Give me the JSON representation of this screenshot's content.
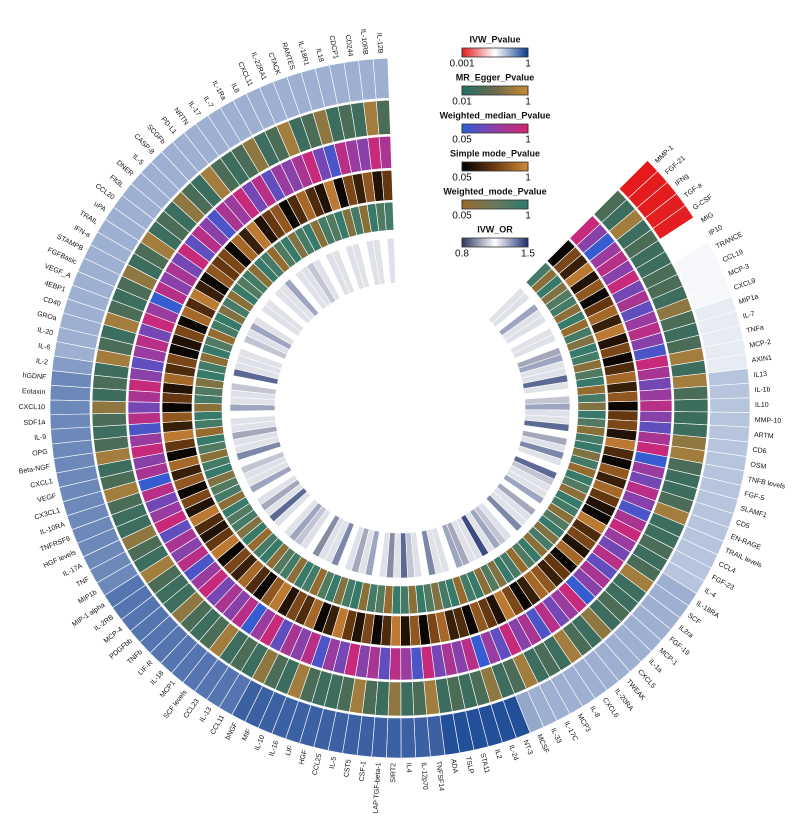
{
  "chart_data": {
    "type": "circular-heatmap",
    "categories": [
      "MMP-1",
      "FGF-21",
      "IFNg",
      "TGF-a",
      "G-CSF",
      "MIG",
      "IP10",
      "TRANCE",
      "CCL19",
      "MCP-3",
      "CXCL9",
      "MIP1a",
      "IL-7",
      "TNFa",
      "MCP-2",
      "AXIN1",
      "IL13",
      "IL-1b",
      "IL10",
      "MMP-10",
      "ARTM",
      "CD6",
      "OSM",
      "TNFB levels",
      "FGF-5",
      "SLAMF1",
      "CD5",
      "EN-RAGE",
      "TRAIL levels",
      "CCL4",
      "FGF-23",
      "IL-4",
      "IL-18RA",
      "SCF",
      "IL2ra",
      "FGF-19",
      "MCP-1",
      "IL-1a",
      "CXCL5",
      "TWEAK",
      "IL-20RA",
      "CXCL6",
      "IL-8",
      "MCP3",
      "IL-17C",
      "IL-33",
      "MCSF",
      "NT-3",
      "IL-24",
      "IL2",
      "STA11",
      "TSLP",
      "ADA",
      "TNFSF14",
      "IL-12p70",
      "IL4",
      "SIRT2",
      "LAP TGF-beta-1",
      "CSF-1",
      "CST5",
      "IL-5",
      "CCL25",
      "HGF",
      "LIF",
      "IL-16",
      "IL-10",
      "MIF",
      "bNGF",
      "CCL11",
      "IL-13",
      "CCL23",
      "SCF levels",
      "MCP1",
      "IL-18",
      "LIF-R",
      "TNFb",
      "PDGFbb",
      "MCP-4",
      "IL-2RB",
      "MIP-1 alpha",
      "MIP1b",
      "TNF",
      "IL-17A",
      "HGF levels",
      "TNFRSF9",
      "IL-10RA",
      "CX3CL1",
      "VEGF",
      "CXCL1",
      "Beta-NGF",
      "OPG",
      "IL-9",
      "SDF1a",
      "CXCL10",
      "Eotaxin",
      "hGDNF",
      "IL-2",
      "IL-6",
      "IL-20",
      "GROa",
      "CD40",
      "4EBP1",
      "VEGF_A",
      "FGFBasic",
      "STAMPB",
      "IFN-a",
      "TRAIL",
      "uPA",
      "CCL20",
      "Flt3L",
      "DNER",
      "IL-5",
      "CASP-8",
      "SCGFb",
      "PD-L1",
      "NRTN",
      "IL-17",
      "IL-7",
      "IL-1Ra",
      "IL8",
      "CXCL11",
      "IL-22RA1",
      "CTACK",
      "RANTES",
      "IL-18R1",
      "IL18",
      "CDCP1",
      "CD244",
      "IL-10RB",
      "IL-12B"
    ],
    "series": [
      {
        "name": "IVW_Pvalue",
        "lim": [
          0.001,
          1
        ],
        "ticks": [
          0.001,
          1
        ],
        "colors": [
          "#e41a1c",
          "#ffffff",
          "#0b3a8c"
        ],
        "values": [
          0.002,
          0.004,
          0.006,
          0.008,
          0.01,
          0.5,
          0.5,
          0.52,
          0.52,
          0.52,
          0.52,
          0.55,
          0.55,
          0.55,
          0.55,
          0.55,
          0.65,
          0.65,
          0.65,
          0.65,
          0.65,
          0.65,
          0.65,
          0.65,
          0.65,
          0.65,
          0.65,
          0.65,
          0.65,
          0.65,
          0.65,
          0.65,
          0.7,
          0.7,
          0.7,
          0.7,
          0.7,
          0.7,
          0.7,
          0.7,
          0.7,
          0.7,
          0.7,
          0.7,
          0.7,
          0.7,
          0.72,
          0.95,
          0.95,
          0.95,
          0.95,
          0.95,
          0.95,
          0.9,
          0.9,
          0.9,
          0.9,
          0.9,
          0.9,
          0.9,
          0.9,
          0.9,
          0.9,
          0.9,
          0.9,
          0.9,
          0.9,
          0.9,
          0.85,
          0.85,
          0.85,
          0.85,
          0.85,
          0.85,
          0.85,
          0.85,
          0.85,
          0.85,
          0.85,
          0.85,
          0.8,
          0.8,
          0.8,
          0.8,
          0.8,
          0.8,
          0.8,
          0.8,
          0.8,
          0.8,
          0.8,
          0.8,
          0.8,
          0.8,
          0.8,
          0.8,
          0.75,
          0.7,
          0.7,
          0.7,
          0.7,
          0.7,
          0.7,
          0.7,
          0.7,
          0.7,
          0.7,
          0.7,
          0.7,
          0.7,
          0.7,
          0.7,
          0.7,
          0.7,
          0.7,
          0.7,
          0.7,
          0.7,
          0.7,
          0.7,
          0.7,
          0.7,
          0.7,
          0.7,
          0.7,
          0.7,
          0.7,
          0.7,
          0.7,
          0.7
        ]
      },
      {
        "name": "MR_Egger_Pvalue",
        "lim": [
          0.01,
          1
        ],
        "ticks": [
          0.01,
          1
        ],
        "colors": [
          "#1f6f6a",
          "#6a6a4a",
          "#c98a35"
        ],
        "values": [
          0.3,
          0.2,
          0.8,
          0.2,
          0.3,
          0.2,
          0.2,
          0.3,
          0.3,
          0.2,
          0.7,
          0.3,
          0.2,
          0.3,
          0.8,
          0.2,
          0.8,
          0.3,
          0.2,
          0.2,
          0.2,
          0.7,
          0.8,
          0.3,
          0.2,
          0.2,
          0.3,
          0.8,
          0.2,
          0.2,
          0.3,
          0.2,
          0.3,
          0.8,
          0.2,
          0.2,
          0.3,
          0.2,
          0.7,
          0.2,
          0.3,
          0.8,
          0.2,
          0.3,
          0.2,
          0.8,
          0.3,
          0.2,
          0.7,
          0.3,
          0.2,
          0.3,
          0.2,
          0.8,
          0.3,
          0.2,
          0.7,
          0.2,
          0.3,
          0.8,
          0.3,
          0.2,
          0.2,
          0.3,
          0.8,
          0.2,
          0.3,
          0.7,
          0.2,
          0.3,
          0.2,
          0.8,
          0.3,
          0.2,
          0.3,
          0.7,
          0.2,
          0.2,
          0.3,
          0.8,
          0.2,
          0.3,
          0.7,
          0.2,
          0.2,
          0.3,
          0.8,
          0.3,
          0.2,
          0.8,
          0.3,
          0.2,
          0.3,
          0.7,
          0.2,
          0.3,
          0.2,
          0.8,
          0.3,
          0.2,
          0.8,
          0.3,
          0.2,
          0.3,
          0.7,
          0.2,
          0.3,
          0.8,
          0.2,
          0.3,
          0.2,
          0.7,
          0.3,
          0.2,
          0.8,
          0.3,
          0.2,
          0.3,
          0.7,
          0.2,
          0.3,
          0.8,
          0.2,
          0.3,
          0.7,
          0.2,
          0.3,
          0.2,
          0.8,
          0.3
        ]
      },
      {
        "name": "Weighted_median_Pvalue",
        "lim": [
          0.05,
          1
        ],
        "ticks": [
          0.05,
          1
        ],
        "colors": [
          "#2c5fd6",
          "#8e3fa8",
          "#d6236f"
        ],
        "values": [
          0.9,
          0.5,
          0.1,
          0.6,
          0.8,
          0.5,
          0.9,
          0.4,
          0.7,
          0.3,
          0.6,
          0.8,
          0.5,
          0.2,
          0.9,
          0.7,
          0.4,
          0.6,
          0.8,
          0.5,
          0.3,
          0.7,
          0.9,
          0.1,
          0.6,
          0.4,
          0.8,
          0.5,
          0.2,
          0.7,
          0.9,
          0.6,
          0.4,
          0.8,
          0.3,
          0.7,
          0.5,
          0.1,
          0.9,
          0.6,
          0.4,
          0.8,
          0.2,
          0.7,
          0.5,
          0.9,
          0.3,
          0.6,
          0.1,
          0.8,
          0.5,
          0.7,
          0.4,
          0.9,
          0.2,
          0.6,
          0.8,
          0.3,
          0.7,
          0.5,
          0.9,
          0.4,
          0.6,
          0.2,
          0.8,
          0.5,
          0.7,
          0.3,
          0.9,
          0.6,
          0.1,
          0.8,
          0.5,
          0.7,
          0.4,
          0.9,
          0.6,
          0.2,
          0.8,
          0.5,
          0.7,
          0.3,
          0.9,
          0.6,
          0.4,
          0.8,
          0.1,
          0.7,
          0.5,
          0.9,
          0.6,
          0.2,
          0.8,
          0.4,
          0.7,
          0.9,
          0.5,
          0.3,
          0.6,
          0.8,
          0.4,
          0.9,
          0.6,
          0.1,
          0.8,
          0.5,
          0.7,
          0.4,
          0.9,
          0.3,
          0.8,
          0.5,
          0.2,
          0.7,
          0.6,
          0.9,
          0.4,
          0.8,
          0.3,
          0.6,
          0.5,
          0.7,
          0.9,
          0.4,
          0.2,
          0.8,
          0.6,
          0.5,
          0.9,
          0.7
        ]
      },
      {
        "name": "Simple mode_Pvalue",
        "lim": [
          0.05,
          1
        ],
        "ticks": [
          0.05,
          1
        ],
        "colors": [
          "#000000",
          "#6b3a12",
          "#d08a3a"
        ],
        "values": [
          0.1,
          0.6,
          0.3,
          0.9,
          0.2,
          0.7,
          0.1,
          0.5,
          0.8,
          0.3,
          0.9,
          0.2,
          0.6,
          0.1,
          0.4,
          0.8,
          0.3,
          0.7,
          0.1,
          0.5,
          0.6,
          0.2,
          0.9,
          0.4,
          0.1,
          0.7,
          0.3,
          0.8,
          0.5,
          0.2,
          0.1,
          0.9,
          0.4,
          0.6,
          0.2,
          0.8,
          0.1,
          0.5,
          0.3,
          0.7,
          0.8,
          0.3,
          0.1,
          0.6,
          0.9,
          0.2,
          0.5,
          0.7,
          0.1,
          0.4,
          0.3,
          0.8,
          0.6,
          0.1,
          0.7,
          0.2,
          0.9,
          0.4,
          0.1,
          0.6,
          0.2,
          0.5,
          0.9,
          0.3,
          0.1,
          0.8,
          0.4,
          0.6,
          0.2,
          0.9,
          0.7,
          0.1,
          0.4,
          0.8,
          0.3,
          0.6,
          0.1,
          0.9,
          0.5,
          0.2,
          0.4,
          0.9,
          0.2,
          0.6,
          0.1,
          0.7,
          0.3,
          0.8,
          0.1,
          0.5,
          0.9,
          0.3,
          0.7,
          0.1,
          0.5,
          0.2,
          0.8,
          0.4,
          0.6,
          0.1,
          0.2,
          0.6,
          0.1,
          0.8,
          0.4,
          0.9,
          0.3,
          0.1,
          0.7,
          0.5,
          0.6,
          0.1,
          0.8,
          0.3,
          0.9,
          0.2,
          0.5,
          0.7,
          0.1,
          0.4,
          0.8,
          0.4,
          0.2,
          0.9,
          0.1,
          0.6,
          0.3,
          0.7,
          0.2,
          0.5
        ]
      },
      {
        "name": "Weighted_mode_Pvalue",
        "lim": [
          0.05,
          1
        ],
        "ticks": [
          0.05,
          1
        ],
        "colors": [
          "#9a6a2a",
          "#6a7a5a",
          "#2a7a6e"
        ],
        "values": [
          0.8,
          0.2,
          0.9,
          0.3,
          0.7,
          0.8,
          0.2,
          0.9,
          0.1,
          0.8,
          0.3,
          0.9,
          0.8,
          0.2,
          0.7,
          0.9,
          0.1,
          0.8,
          0.3,
          0.9,
          0.7,
          0.2,
          0.8,
          0.9,
          0.3,
          0.8,
          0.1,
          0.9,
          0.7,
          0.2,
          0.9,
          0.8,
          0.2,
          0.7,
          0.9,
          0.3,
          0.8,
          0.2,
          0.9,
          0.7,
          0.1,
          0.8,
          0.9,
          0.3,
          0.7,
          0.2,
          0.9,
          0.8,
          0.1,
          0.9,
          0.8,
          0.3,
          0.7,
          0.9,
          0.2,
          0.8,
          0.9,
          0.1,
          0.7,
          0.8,
          0.2,
          0.9,
          0.8,
          0.3,
          0.9,
          0.7,
          0.1,
          0.8,
          0.9,
          0.2,
          0.8,
          0.7,
          0.2,
          0.9,
          0.8,
          0.1,
          0.9,
          0.3,
          0.8,
          0.7,
          0.9,
          0.2,
          0.8,
          0.7,
          0.3,
          0.9,
          0.8,
          0.2,
          0.7,
          0.9,
          0.1,
          0.8,
          0.9,
          0.2,
          0.8,
          0.7,
          0.3,
          0.9,
          0.8,
          0.2,
          0.9,
          0.7,
          0.1,
          0.8,
          0.9,
          0.3,
          0.8,
          0.2,
          0.9,
          0.7,
          0.8,
          0.2,
          0.9,
          0.8,
          0.1,
          0.7,
          0.9,
          0.3,
          0.8,
          0.9,
          0.2,
          0.8,
          0.7,
          0.9,
          0.3,
          0.8,
          0.2,
          0.9,
          0.7,
          0.8
        ]
      },
      {
        "name": "IVW_OR",
        "lim": [
          0.8,
          1.5
        ],
        "ticks": [
          0.8,
          1.5
        ],
        "colors": [
          "#2d3561",
          "#ffffff",
          "#1c2d6b"
        ],
        "values": [
          1.1,
          1.2,
          1.15,
          1.3,
          1.1,
          1.2,
          1.15,
          1.1,
          1.2,
          1.15,
          1.0,
          1.3,
          1.1,
          1.2,
          1.4,
          1.1,
          1.15,
          1.05,
          1.3,
          1.2,
          1.1,
          1.4,
          1.15,
          1.0,
          1.2,
          1.35,
          1.1,
          1.15,
          1.4,
          1.05,
          1.2,
          1.1,
          1.3,
          1.15,
          1.0,
          1.2,
          1.1,
          1.35,
          1.15,
          1.2,
          1.05,
          1.3,
          1.1,
          1.45,
          1.2,
          1.1,
          1.0,
          1.3,
          1.15,
          1.2,
          1.1,
          1.35,
          1.15,
          1.2,
          1.05,
          1.4,
          1.1,
          0.95,
          1.2,
          1.15,
          1.3,
          1.1,
          1.0,
          1.2,
          1.15,
          1.35,
          1.1,
          1.2,
          0.95,
          1.15,
          1.2,
          1.05,
          1.3,
          1.1,
          1.15,
          1.2,
          1.4,
          1.1,
          1.0,
          1.2,
          1.15,
          1.3,
          1.1,
          1.2,
          1.05,
          1.15,
          1.35,
          1.1,
          1.2,
          1.0,
          1.1,
          1.2,
          1.15,
          1.3,
          1.1,
          1.2,
          1.05,
          1.15,
          1.4,
          1.1,
          1.2,
          1.1,
          1.15,
          1.05,
          1.2,
          1.3,
          1.1,
          1.15,
          1.2,
          1.1,
          1.15,
          1.2,
          1.1,
          1.3,
          1.15,
          1.1,
          1.2,
          1.05,
          1.1,
          1.15,
          1.2,
          1.1,
          1.15,
          1.2,
          1.1,
          1.15,
          1.2,
          1.1,
          1.15,
          1.2
        ]
      }
    ]
  }
}
